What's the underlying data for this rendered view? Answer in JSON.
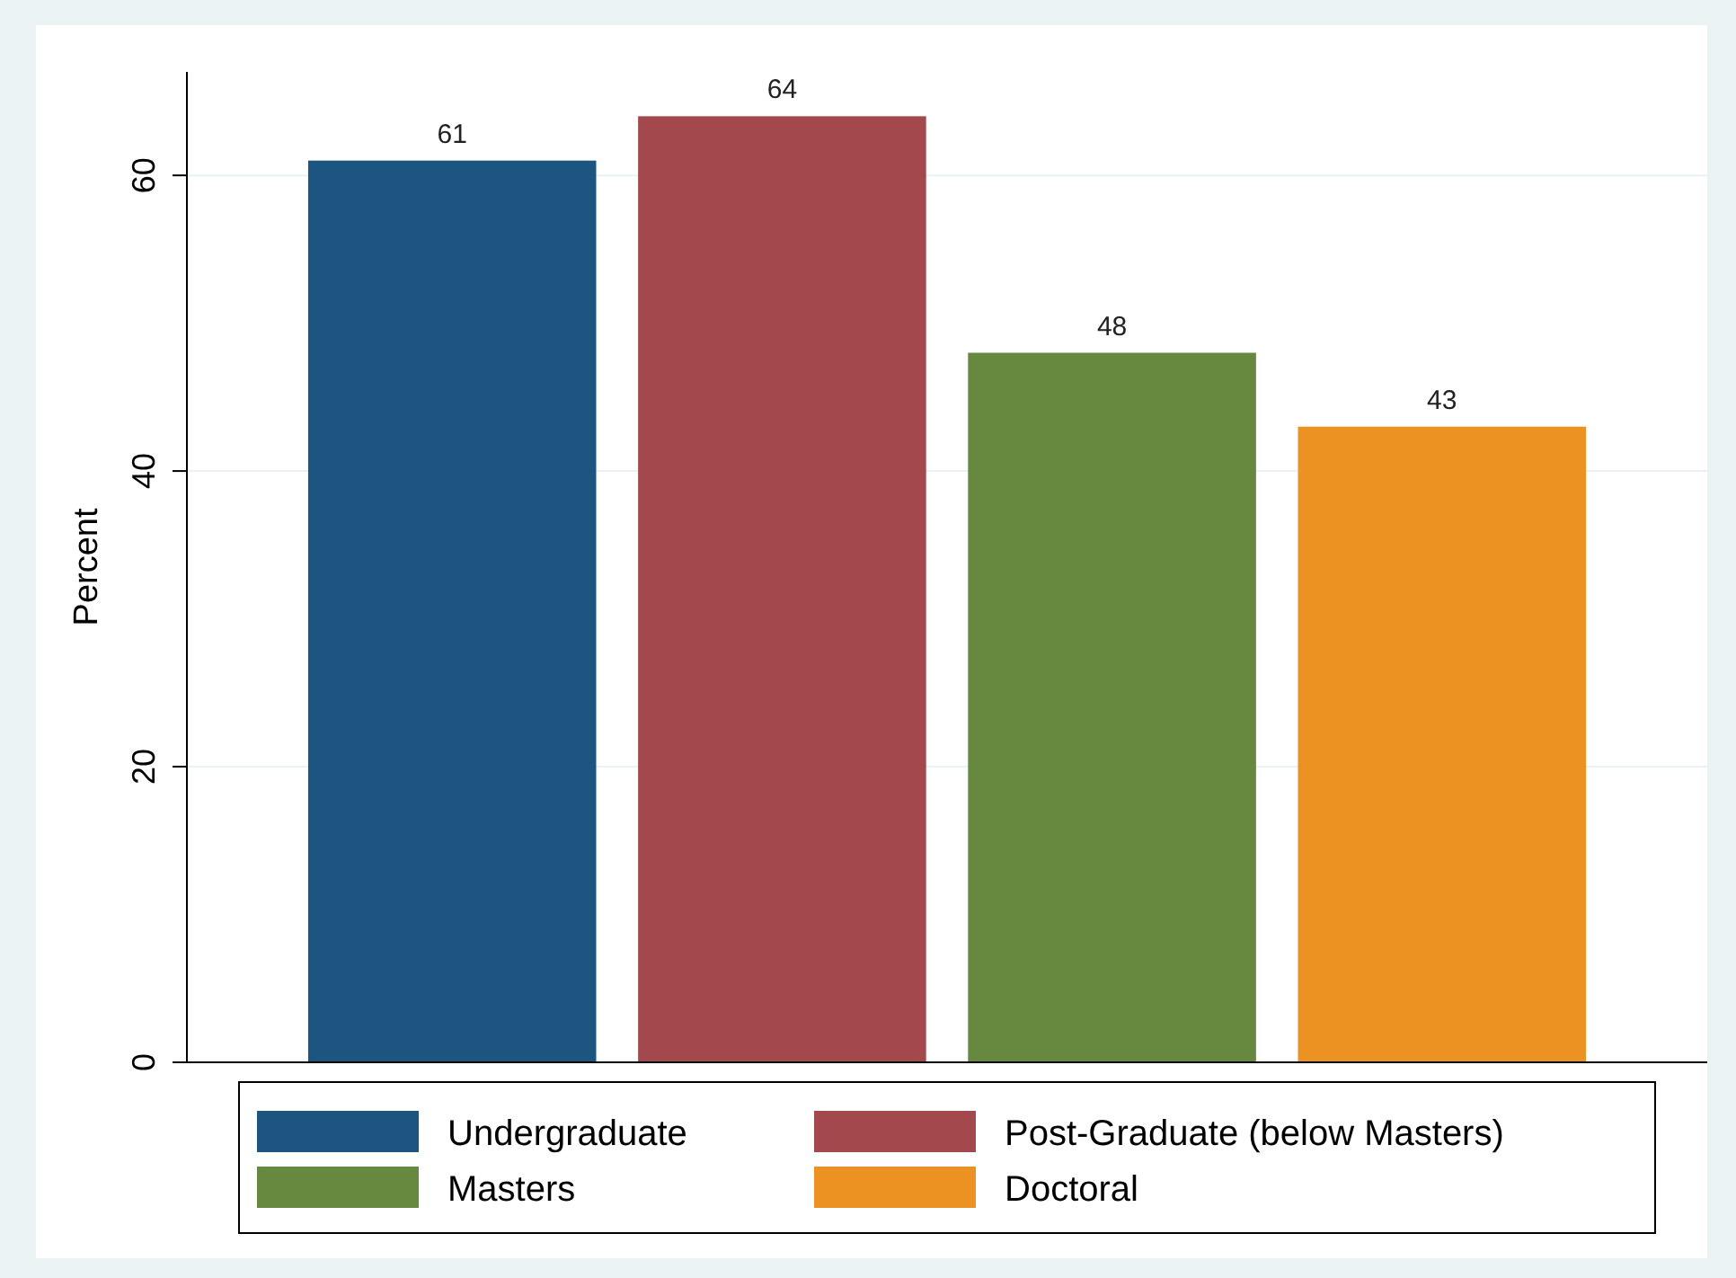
{
  "chart_data": {
    "type": "bar",
    "ylabel": "Percent",
    "categories": [
      null
    ],
    "series": [
      {
        "name": "Undergraduate",
        "color": "#1c5580",
        "values": [
          61
        ]
      },
      {
        "name": "Post-Graduate (below Masters)",
        "color": "#a3494e",
        "values": [
          64
        ]
      },
      {
        "name": "Masters",
        "color": "#66893f",
        "values": [
          48
        ]
      },
      {
        "name": "Doctoral",
        "color": "#ec9223",
        "values": [
          43
        ]
      }
    ],
    "ylim": [
      0,
      67
    ],
    "yticks": [
      0,
      20,
      40,
      60
    ],
    "grid": "y",
    "legend": "bottom",
    "data_labels": true
  }
}
